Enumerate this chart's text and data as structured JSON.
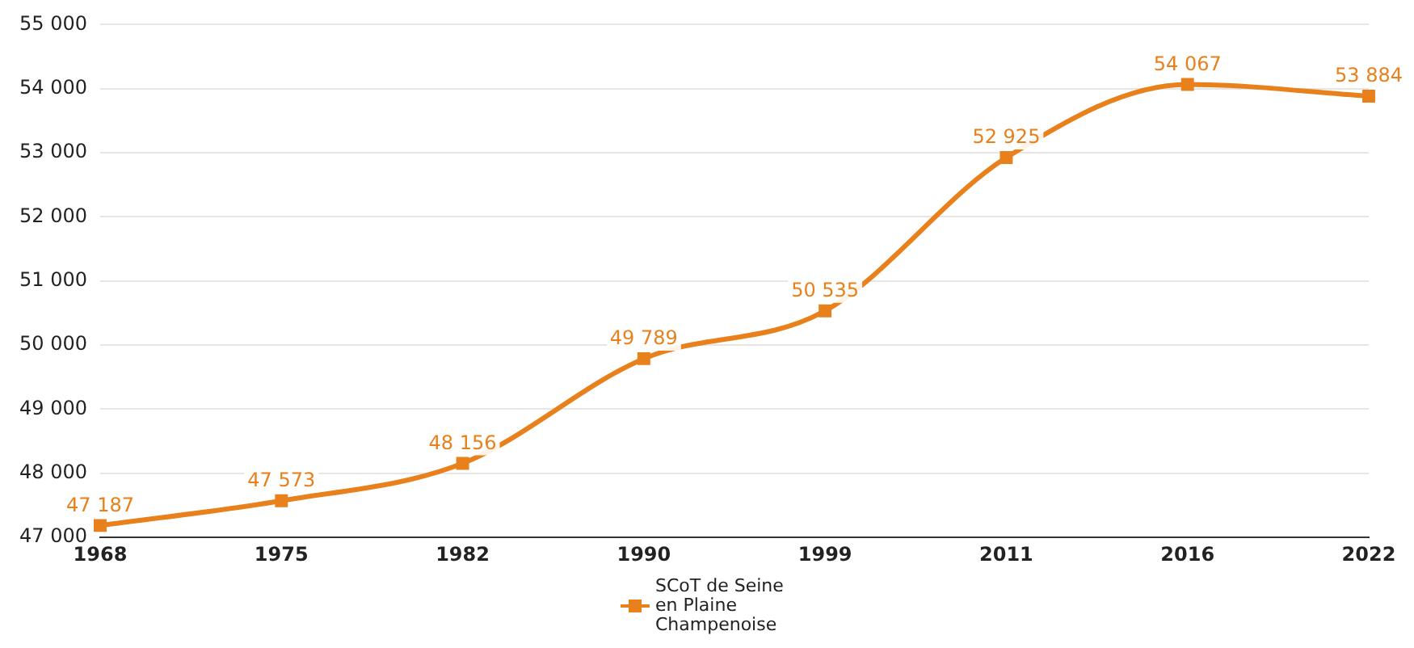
{
  "chart_data": {
    "type": "line",
    "categories": [
      "1968",
      "1975",
      "1982",
      "1990",
      "1999",
      "2011",
      "2016",
      "2022"
    ],
    "series": [
      {
        "name": "SCoT de Seine en Plaine Champenoise",
        "color": "#e8801c",
        "values": [
          47187,
          47573,
          48156,
          49789,
          50535,
          52925,
          54067,
          53884
        ],
        "value_labels": [
          "47 187",
          "47 573",
          "48 156",
          "49 789",
          "50 535",
          "52 925",
          "54 067",
          "53 884"
        ]
      }
    ],
    "ylim": [
      47000,
      55000
    ],
    "yticks": [
      {
        "value": 47000,
        "label": "47 000"
      },
      {
        "value": 48000,
        "label": "48 000"
      },
      {
        "value": 49000,
        "label": "49 000"
      },
      {
        "value": 50000,
        "label": "50 000"
      },
      {
        "value": 51000,
        "label": "51 000"
      },
      {
        "value": 52000,
        "label": "52 000"
      },
      {
        "value": 53000,
        "label": "53 000"
      },
      {
        "value": 54000,
        "label": "54 000"
      },
      {
        "value": 55000,
        "label": "55 000"
      }
    ],
    "grid": "y",
    "legend": "bottom",
    "marker": "square",
    "line_style": "solid"
  }
}
